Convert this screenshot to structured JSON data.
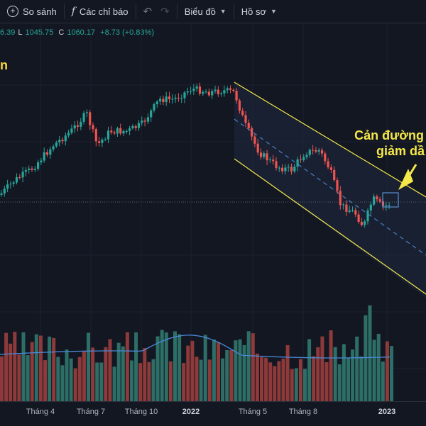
{
  "toolbar": {
    "compare_label": "So sánh",
    "indicators_label": "Các chỉ báo",
    "chart_label": "Biểu đồ",
    "profile_label": "Hồ sơ"
  },
  "ohlc": {
    "open_partial": "6.39",
    "low_label": "L",
    "low": "1045.75",
    "close_label": "C",
    "close": "1060.17",
    "change": "+8.73 (+0.83%)"
  },
  "side_label": "n",
  "annotation": {
    "line1": "Cản đường t",
    "line2": "giảm dầ"
  },
  "xaxis": {
    "ticks": [
      "Tháng 4",
      "Tháng 7",
      "Tháng 10",
      "2022",
      "Tháng 5",
      "Tháng 8",
      "2023"
    ]
  },
  "colors": {
    "up": "#26a69a",
    "down": "#ef5350",
    "channel": "#f5e84a",
    "ma": "#2962ff",
    "background": "#131722"
  },
  "chart_data": {
    "type": "candlestick",
    "x_ticks": [
      "Tháng 4",
      "Tháng 7",
      "Tháng 10",
      "2022",
      "Tháng 5",
      "Tháng 8",
      "2023"
    ],
    "last_close": 1060.17,
    "last_change": 8.73,
    "last_change_pct": 0.83,
    "last_low": 1045.75,
    "trend_segments": [
      {
        "phase": "uptrend",
        "from": "Tháng 4",
        "to": "2022"
      },
      {
        "phase": "downtrend_channel",
        "from": "2022",
        "to": "2023"
      }
    ],
    "annotations": [
      "Cản đường t",
      "giảm dầ"
    ],
    "volume_ma": true
  }
}
